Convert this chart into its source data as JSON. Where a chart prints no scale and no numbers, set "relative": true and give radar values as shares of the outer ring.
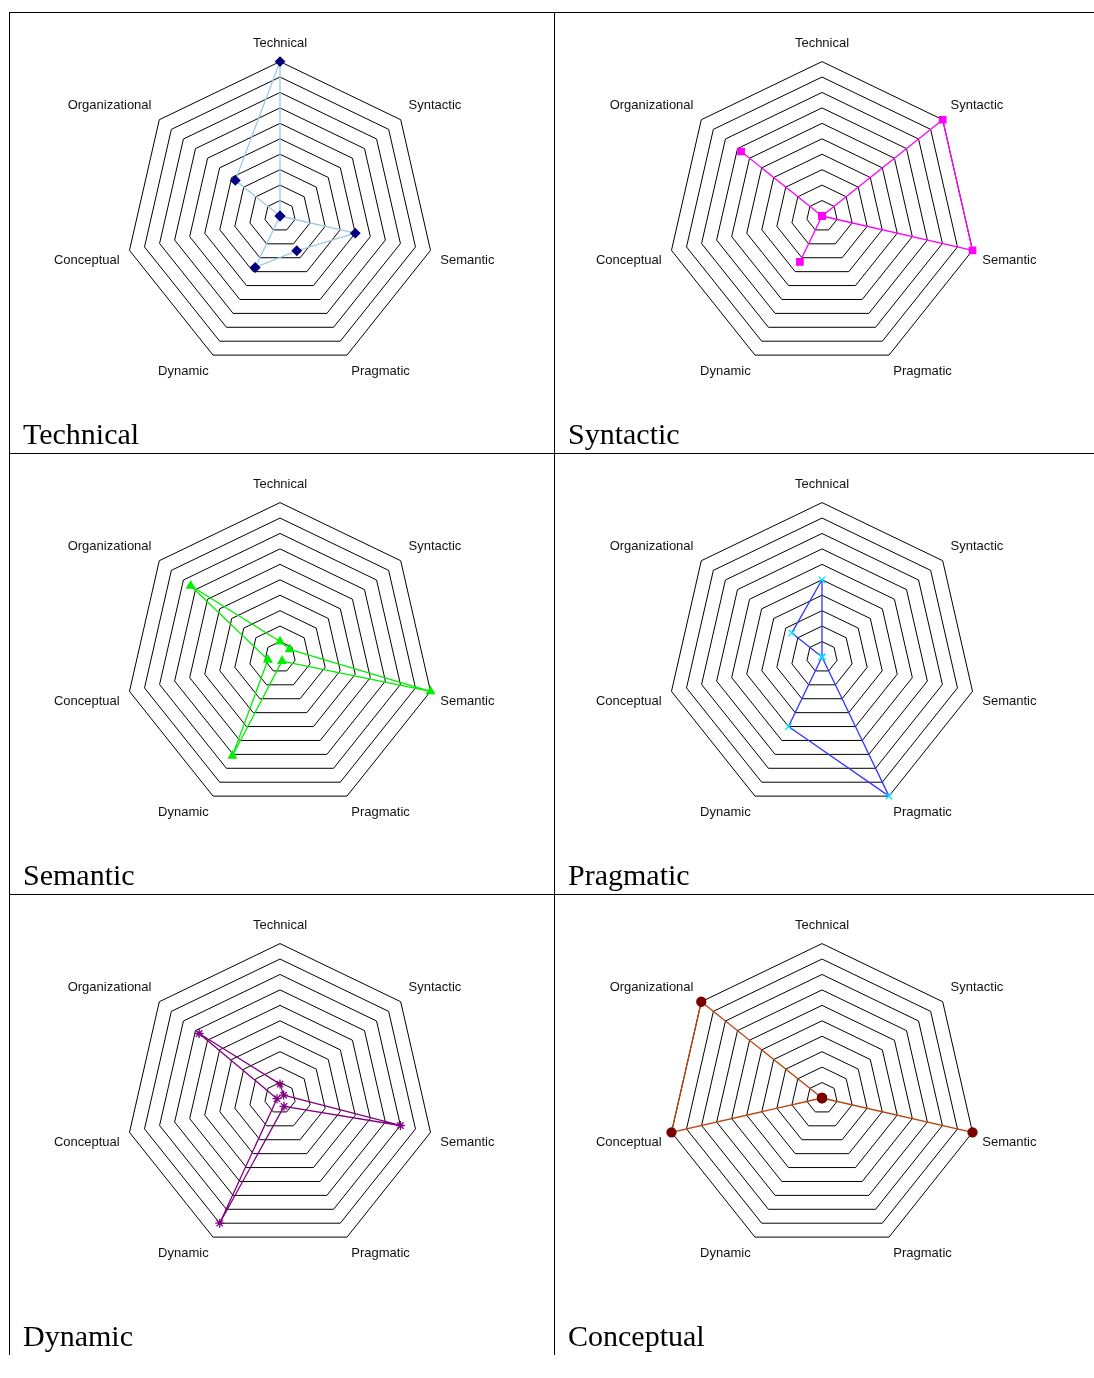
{
  "chart_data": [
    {
      "type": "radar",
      "title": "Technical",
      "relative": true,
      "categories": [
        "Technical",
        "Syntactic",
        "Semantic",
        "Pragmatic",
        "Dynamic",
        "Conceptual",
        "Organizational"
      ],
      "grid": true,
      "marker": "diamond",
      "line_style": "solid",
      "series": [
        {
          "color": "#9ecae1",
          "colors": [
            "#000080",
            "#000080",
            "#000080",
            "#000080",
            "#000080",
            "#000080",
            "#000080"
          ],
          "values": [
            1,
            0,
            0.5,
            0.25,
            0.37,
            0,
            0.37
          ]
        }
      ]
    },
    {
      "type": "radar",
      "title": "Syntactic",
      "relative": true,
      "categories": [
        "Technical",
        "Syntactic",
        "Semantic",
        "Pragmatic",
        "Dynamic",
        "Conceptual",
        "Organizational"
      ],
      "grid": true,
      "marker": "square",
      "line_style": "solid",
      "series": [
        {
          "color": "#ff00ff",
          "colors": [
            "#ff00ff",
            "#ff00ff",
            "#ff00ff",
            "#ff00ff",
            "#ff00ff",
            "#ff00ff",
            "#ff00ff"
          ],
          "values": [
            0,
            1,
            1,
            0,
            0.33,
            0,
            0.67
          ]
        }
      ]
    },
    {
      "type": "radar",
      "title": "Semantic",
      "relative": true,
      "categories": [
        "Technical",
        "Syntactic",
        "Semantic",
        "Pragmatic",
        "Dynamic",
        "Conceptual",
        "Organizational"
      ],
      "grid": true,
      "marker": "triangle",
      "line_style": "solid",
      "series": [
        {
          "color": "#00ee00",
          "colors": [
            "#00ee00",
            "#00ee00",
            "#00ee00",
            "#00ee00",
            "#00ee00",
            "#00ee00",
            "#00ee00"
          ],
          "values": [
            0.1,
            0.08,
            1,
            0.03,
            0.71,
            0.08,
            0.74
          ]
        }
      ]
    },
    {
      "type": "radar",
      "title": "Pragmatic",
      "relative": true,
      "categories": [
        "Technical",
        "Syntactic",
        "Semantic",
        "Pragmatic",
        "Dynamic",
        "Conceptual",
        "Organizational"
      ],
      "grid": true,
      "marker": "cross",
      "line_style": "solid",
      "series": [
        {
          "color": "#3333ff",
          "colors": [
            "#00e5ff",
            "#00e5ff",
            "#00e5ff",
            "#00e5ff",
            "#00e5ff",
            "#00e5ff",
            "#00e5ff"
          ],
          "values": [
            0.5,
            0,
            0,
            1,
            0.5,
            0,
            0.25
          ]
        }
      ]
    },
    {
      "type": "radar",
      "title": "Dynamic",
      "relative": true,
      "categories": [
        "Technical",
        "Syntactic",
        "Semantic",
        "Pragmatic",
        "Dynamic",
        "Conceptual",
        "Organizational"
      ],
      "grid": true,
      "marker": "star",
      "line_style": "solid",
      "series": [
        {
          "color": "#800080",
          "colors": [
            "#800080",
            "#800080",
            "#800080",
            "#800080",
            "#800080",
            "#800080",
            "#800080"
          ],
          "values": [
            0.09,
            0.03,
            0.8,
            0.06,
            0.9,
            0.02,
            0.67
          ]
        }
      ]
    },
    {
      "type": "radar",
      "title": "Conceptual",
      "relative": true,
      "categories": [
        "Technical",
        "Syntactic",
        "Semantic",
        "Pragmatic",
        "Dynamic",
        "Conceptual",
        "Organizational"
      ],
      "grid": true,
      "marker": "circle",
      "line_style": "solid",
      "series": [
        {
          "color": "#b8440f",
          "colors": [
            "#7a0000",
            "#7a0000",
            "#7a0000",
            "#7a0000",
            "#7a0000",
            "#7a0000",
            "#7a0000"
          ],
          "values": [
            0,
            0,
            1,
            0,
            0,
            1,
            1
          ]
        }
      ]
    }
  ]
}
